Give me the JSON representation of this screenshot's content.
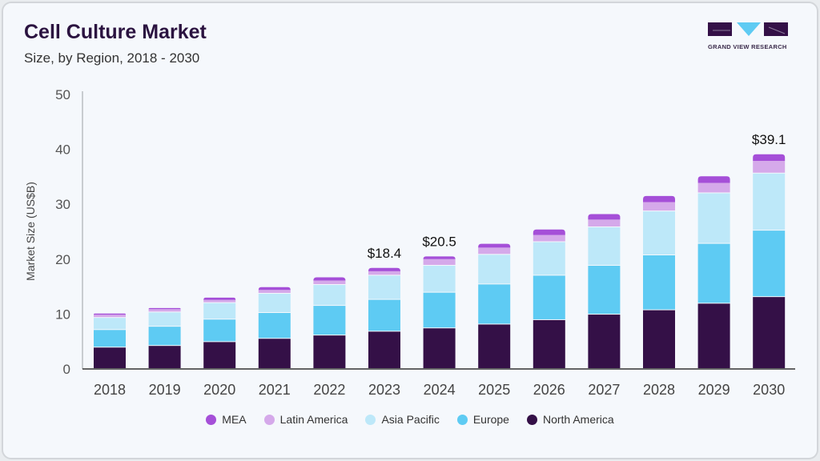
{
  "header": {
    "title": "Cell Culture Market",
    "subtitle": "Size, by Region, 2018 - 2030"
  },
  "logo": {
    "text": "GRAND VIEW RESEARCH"
  },
  "chart_data": {
    "type": "bar",
    "stacked": true,
    "title": "Cell Culture Market",
    "subtitle": "Size, by Region, 2018 - 2030",
    "xlabel": "",
    "ylabel": "Market Size (US$B)",
    "ylim": [
      0,
      50
    ],
    "yticks": [
      0,
      10,
      20,
      30,
      40,
      50
    ],
    "grid": false,
    "legend_position": "bottom",
    "categories": [
      "2018",
      "2019",
      "2020",
      "2021",
      "2022",
      "2023",
      "2024",
      "2025",
      "2026",
      "2027",
      "2028",
      "2029",
      "2030"
    ],
    "series": [
      {
        "name": "North America",
        "color": "#341047",
        "values": [
          3.9,
          4.2,
          4.9,
          5.5,
          6.1,
          6.8,
          7.4,
          8.1,
          8.9,
          9.9,
          10.7,
          11.9,
          13.1
        ]
      },
      {
        "name": "Europe",
        "color": "#5ecbf3",
        "values": [
          3.2,
          3.5,
          4.1,
          4.7,
          5.4,
          5.8,
          6.5,
          7.3,
          8.1,
          8.9,
          10.0,
          10.9,
          12.1
        ]
      },
      {
        "name": "Asia Pacific",
        "color": "#bde8f9",
        "values": [
          2.2,
          2.6,
          3.0,
          3.5,
          3.8,
          4.4,
          4.9,
          5.4,
          6.1,
          7.0,
          8.0,
          9.2,
          10.4
        ]
      },
      {
        "name": "Latin America",
        "color": "#d5a9ea",
        "values": [
          0.6,
          0.6,
          0.6,
          0.7,
          0.8,
          0.8,
          1.2,
          1.3,
          1.3,
          1.4,
          1.7,
          1.9,
          2.3
        ]
      },
      {
        "name": "MEA",
        "color": "#a54fd8",
        "values": [
          0.2,
          0.2,
          0.4,
          0.5,
          0.6,
          0.6,
          0.5,
          0.7,
          1.0,
          1.0,
          1.1,
          1.2,
          1.2
        ]
      }
    ],
    "annotations": [
      {
        "category": "2023",
        "text": "$18.4"
      },
      {
        "category": "2024",
        "text": "$20.5"
      },
      {
        "category": "2030",
        "text": "$39.1"
      }
    ],
    "legend_order": [
      "MEA",
      "Latin America",
      "Asia Pacific",
      "Europe",
      "North America"
    ]
  }
}
